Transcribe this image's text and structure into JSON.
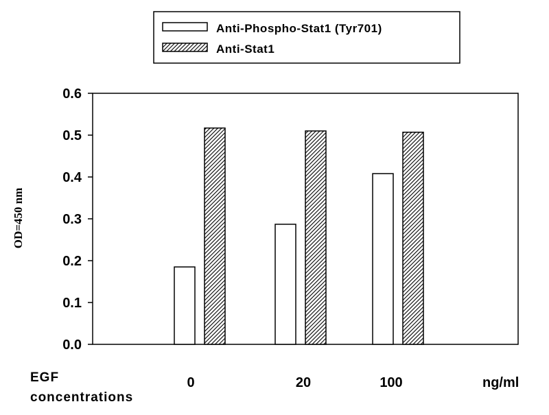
{
  "chart_data": {
    "type": "bar",
    "title": "",
    "ylabel": "OD=450 nm",
    "xlabel_lines": [
      "EGF",
      "concentrations"
    ],
    "x_unit": "ng/ml",
    "categories": [
      "0",
      "20",
      "100"
    ],
    "series": [
      {
        "name": "Anti-Phospho-Stat1 (Tyr701)",
        "values": [
          0.185,
          0.287,
          0.408
        ],
        "pattern": "open"
      },
      {
        "name": "Anti-Stat1",
        "values": [
          0.517,
          0.51,
          0.507
        ],
        "pattern": "hatched"
      }
    ],
    "ylim": [
      0,
      0.6
    ],
    "yticks": [
      "0.0",
      "0.1",
      "0.2",
      "0.3",
      "0.4",
      "0.5",
      "0.6"
    ],
    "grid": false,
    "legend_position": "top"
  }
}
